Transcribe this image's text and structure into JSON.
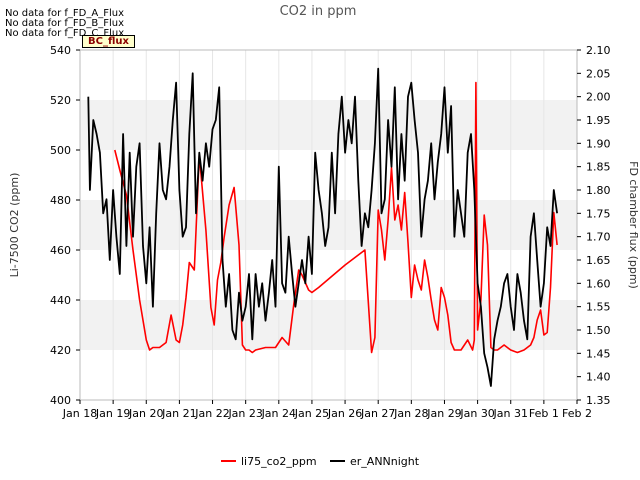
{
  "notes": [
    "No data for f_FD_A_Flux",
    "No data for f_FD_B_Flux",
    "No data for f_FD_C_Flux"
  ],
  "badge": "BC_flux",
  "chart_data": {
    "type": "line",
    "title": "CO2 in ppm",
    "xlabel": "",
    "ylabel": "Li-7500 CO2 (ppm)",
    "y2label": "FD chamber flux (ppm)",
    "x_ticks": [
      "Jan 18",
      "Jan 19",
      "Jan 20",
      "Jan 21",
      "Jan 22",
      "Jan 23",
      "Jan 24",
      "Jan 25",
      "Jan 26",
      "Jan 27",
      "Jan 28",
      "Jan 29",
      "Jan 30",
      "Jan 31",
      "Feb 1",
      "Feb 2"
    ],
    "xlim": [
      0,
      15
    ],
    "ylim": [
      400,
      540
    ],
    "y_ticks": [
      400,
      420,
      440,
      460,
      480,
      500,
      520,
      540
    ],
    "y2lim": [
      1.35,
      2.1
    ],
    "y2_ticks": [
      "1.35",
      "1.40",
      "1.45",
      "1.50",
      "1.55",
      "1.60",
      "1.65",
      "1.70",
      "1.75",
      "1.80",
      "1.85",
      "1.90",
      "1.95",
      "2.00",
      "2.05",
      "2.10"
    ],
    "grid": "horizontal bands",
    "legend": "bottom-center",
    "series": [
      {
        "name": "li75_co2_ppm",
        "axis": "left",
        "color": "#ff0000",
        "x": [
          1.05,
          1.2,
          1.4,
          1.6,
          1.8,
          2.0,
          2.1,
          2.2,
          2.4,
          2.6,
          2.75,
          2.9,
          3.0,
          3.1,
          3.2,
          3.3,
          3.45,
          3.6,
          3.8,
          3.95,
          4.05,
          4.15,
          4.25,
          4.35,
          4.5,
          4.65,
          4.8,
          4.9,
          5.0,
          5.1,
          5.2,
          5.3,
          5.6,
          5.9,
          6.1,
          6.3,
          6.45,
          6.6,
          6.7,
          6.8,
          6.9,
          7.0,
          7.1,
          7.2,
          8.0,
          8.6,
          8.8,
          8.9,
          9.0,
          9.1,
          9.2,
          9.3,
          9.4,
          9.5,
          9.6,
          9.7,
          9.8,
          9.9,
          10.0,
          10.1,
          10.2,
          10.3,
          10.4,
          10.5,
          10.6,
          10.7,
          10.8,
          10.9,
          11.0,
          11.1,
          11.2,
          11.3,
          11.5,
          11.7,
          11.85,
          11.9,
          11.95,
          12.0,
          12.1,
          12.2,
          12.3,
          12.4,
          12.5,
          12.6,
          12.8,
          13.0,
          13.2,
          13.4,
          13.6,
          13.7,
          13.8,
          13.9,
          14.0,
          14.1,
          14.2,
          14.3,
          14.4
        ],
        "values": [
          500,
          492,
          482,
          460,
          440,
          424,
          420,
          421,
          421,
          423,
          434,
          424,
          423,
          430,
          441,
          455,
          452,
          498,
          468,
          437,
          430,
          448,
          455,
          465,
          478,
          485,
          462,
          422,
          420,
          420,
          419,
          420,
          421,
          421,
          425,
          422,
          438,
          452,
          450,
          447,
          444,
          443,
          444,
          445,
          454,
          460,
          419,
          425,
          476,
          468,
          456,
          472,
          493,
          472,
          478,
          468,
          483,
          463,
          441,
          454,
          448,
          444,
          456,
          449,
          440,
          432,
          428,
          445,
          441,
          434,
          423,
          420,
          420,
          424,
          420,
          424,
          527,
          428,
          440,
          474,
          462,
          421,
          420,
          420,
          422,
          420,
          419,
          420,
          422,
          425,
          432,
          436,
          426,
          427,
          445,
          475,
          462
        ]
      },
      {
        "name": "er_ANNnight",
        "axis": "right",
        "color": "#000000",
        "x": [
          0.25,
          0.3,
          0.4,
          0.5,
          0.6,
          0.7,
          0.8,
          0.9,
          1.0,
          1.1,
          1.2,
          1.3,
          1.4,
          1.5,
          1.6,
          1.7,
          1.8,
          1.9,
          2.0,
          2.1,
          2.2,
          2.3,
          2.4,
          2.5,
          2.6,
          2.7,
          2.8,
          2.9,
          3.0,
          3.1,
          3.2,
          3.3,
          3.4,
          3.5,
          3.6,
          3.7,
          3.8,
          3.9,
          4.0,
          4.1,
          4.2,
          4.3,
          4.4,
          4.5,
          4.6,
          4.7,
          4.8,
          4.9,
          5.0,
          5.1,
          5.2,
          5.3,
          5.4,
          5.5,
          5.6,
          5.7,
          5.8,
          5.9,
          6.0,
          6.1,
          6.2,
          6.3,
          6.4,
          6.5,
          6.6,
          6.7,
          6.8,
          6.9,
          7.0,
          7.1,
          7.2,
          7.3,
          7.4,
          7.5,
          7.6,
          7.7,
          7.8,
          7.9,
          8.0,
          8.1,
          8.2,
          8.3,
          8.4,
          8.5,
          8.6,
          8.7,
          8.8,
          8.9,
          9.0,
          9.1,
          9.2,
          9.3,
          9.4,
          9.5,
          9.6,
          9.7,
          9.8,
          9.9,
          10.0,
          10.1,
          10.2,
          10.3,
          10.4,
          10.5,
          10.6,
          10.7,
          10.8,
          10.9,
          11.0,
          11.1,
          11.2,
          11.3,
          11.4,
          11.5,
          11.6,
          11.7,
          11.8,
          11.9,
          12.0,
          12.1,
          12.2,
          12.3,
          12.4,
          12.5,
          12.6,
          12.7,
          12.8,
          12.9,
          13.0,
          13.1,
          13.2,
          13.3,
          13.4,
          13.5,
          13.6,
          13.7,
          13.8,
          13.9,
          14.0,
          14.1,
          14.2,
          14.3,
          14.4
        ],
        "values": [
          2.0,
          1.8,
          1.95,
          1.92,
          1.88,
          1.75,
          1.78,
          1.65,
          1.8,
          1.7,
          1.62,
          1.92,
          1.68,
          1.88,
          1.7,
          1.85,
          1.9,
          1.68,
          1.6,
          1.72,
          1.55,
          1.75,
          1.9,
          1.8,
          1.78,
          1.85,
          1.95,
          2.03,
          1.8,
          1.7,
          1.72,
          1.92,
          2.05,
          1.75,
          1.88,
          1.82,
          1.9,
          1.85,
          1.93,
          1.95,
          2.02,
          1.65,
          1.55,
          1.62,
          1.5,
          1.48,
          1.58,
          1.52,
          1.55,
          1.62,
          1.48,
          1.62,
          1.55,
          1.6,
          1.52,
          1.58,
          1.65,
          1.55,
          1.85,
          1.6,
          1.58,
          1.7,
          1.62,
          1.55,
          1.6,
          1.65,
          1.6,
          1.7,
          1.62,
          1.88,
          1.8,
          1.75,
          1.68,
          1.72,
          1.88,
          1.75,
          1.92,
          2.0,
          1.88,
          1.95,
          1.9,
          2.0,
          1.82,
          1.68,
          1.75,
          1.72,
          1.8,
          1.9,
          2.06,
          1.75,
          1.78,
          1.95,
          1.85,
          2.02,
          1.78,
          1.92,
          1.82,
          2.0,
          2.03,
          1.95,
          1.88,
          1.7,
          1.78,
          1.82,
          1.9,
          1.78,
          1.86,
          1.92,
          2.02,
          1.88,
          1.98,
          1.7,
          1.8,
          1.75,
          1.7,
          1.88,
          1.92,
          1.8,
          1.6,
          1.55,
          1.45,
          1.42,
          1.38,
          1.48,
          1.52,
          1.55,
          1.6,
          1.62,
          1.55,
          1.5,
          1.62,
          1.58,
          1.52,
          1.48,
          1.7,
          1.75,
          1.65,
          1.55,
          1.6,
          1.72,
          1.68,
          1.8,
          1.75
        ]
      }
    ]
  }
}
